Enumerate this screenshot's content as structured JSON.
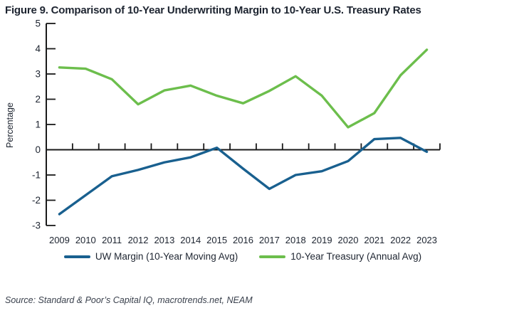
{
  "figure": {
    "title": "Figure 9. Comparison of 10-Year Underwriting Margin to 10-Year U.S. Treasury Rates",
    "source": "Source: Standard & Poor’s Capital IQ, macrotrends.net, NEAM"
  },
  "chart_data": {
    "type": "line",
    "title": "Figure 9. Comparison of 10-Year Underwriting Margin to 10-Year U.S. Treasury Rates",
    "xlabel": "",
    "ylabel": "Percentage",
    "ylim": [
      -3,
      5
    ],
    "yticks": [
      5,
      4,
      3,
      2,
      1,
      0,
      -1,
      -2,
      -3
    ],
    "grid": false,
    "legend_position": "bottom",
    "axis_color": "#1a1a1a",
    "text_color": "#1d2430",
    "categories": [
      "2009",
      "2010",
      "2011",
      "2012",
      "2013",
      "2014",
      "2015",
      "2016",
      "2017",
      "2018",
      "2019",
      "2020",
      "2021",
      "2022",
      "2023"
    ],
    "series": [
      {
        "name": "UW Margin (10-Year Moving Avg)",
        "color": "#19608F",
        "values": [
          -2.55,
          -1.8,
          -1.05,
          -0.8,
          -0.5,
          -0.3,
          0.08,
          -0.75,
          -1.55,
          -1.0,
          -0.85,
          -0.45,
          0.42,
          0.47,
          -0.08
        ]
      },
      {
        "name": "10-Year Treasury (Annual Avg)",
        "color": "#6CBE4C",
        "values": [
          3.26,
          3.21,
          2.79,
          1.8,
          2.35,
          2.54,
          2.14,
          1.84,
          2.33,
          2.91,
          2.14,
          0.89,
          1.45,
          2.95,
          3.96
        ]
      }
    ]
  }
}
